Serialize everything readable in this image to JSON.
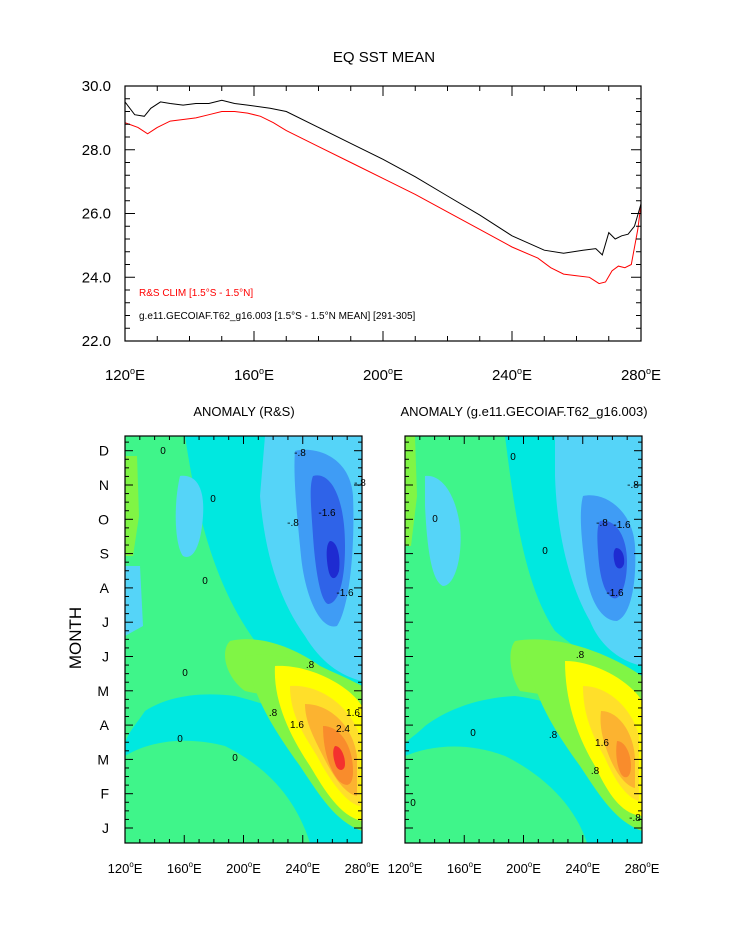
{
  "chart_data": [
    {
      "type": "line",
      "title": "EQ SST MEAN",
      "xlabel": "",
      "ylabel": "",
      "xlim": [
        120,
        280
      ],
      "ylim": [
        22,
        30
      ],
      "xticks": [
        120,
        160,
        200,
        240,
        280
      ],
      "xtick_labels": [
        "120°E",
        "160°E",
        "200°E",
        "240°E",
        "280°E"
      ],
      "yticks": [
        22,
        24,
        26,
        28,
        30
      ],
      "ytick_labels": [
        "22.0",
        "24.0",
        "26.0",
        "28.0",
        "30.0"
      ],
      "grid": false,
      "legend_placement": "bottom-left",
      "series": [
        {
          "name": "R&S CLIM [1.5°S - 1.5°N]",
          "color": "#ff0000",
          "x": [
            120,
            124,
            127,
            130,
            134,
            138,
            142,
            146,
            150,
            154,
            158,
            162,
            166,
            170,
            180,
            190,
            200,
            210,
            220,
            230,
            240,
            248,
            252,
            256,
            260,
            264,
            267,
            269,
            271,
            273,
            275,
            277,
            279,
            280
          ],
          "y": [
            28.85,
            28.7,
            28.5,
            28.7,
            28.9,
            28.95,
            29.0,
            29.1,
            29.2,
            29.2,
            29.15,
            29.05,
            28.85,
            28.6,
            28.1,
            27.6,
            27.1,
            26.6,
            26.05,
            25.5,
            24.95,
            24.6,
            24.3,
            24.1,
            24.05,
            24.0,
            23.8,
            23.85,
            24.2,
            24.35,
            24.3,
            24.4,
            25.5,
            26.3
          ]
        },
        {
          "name": "g.e11.GECOIAF.T62_g16.003 [1.5°S - 1.5°N MEAN] [291-305]",
          "color": "#000000",
          "x": [
            120,
            123,
            126,
            128,
            131,
            134,
            138,
            142,
            146,
            150,
            154,
            158,
            165,
            170,
            180,
            190,
            200,
            210,
            220,
            230,
            240,
            250,
            256,
            262,
            266,
            268,
            270,
            272,
            274,
            276,
            278,
            280
          ],
          "y": [
            29.5,
            29.1,
            29.05,
            29.3,
            29.5,
            29.45,
            29.4,
            29.45,
            29.45,
            29.55,
            29.45,
            29.4,
            29.3,
            29.2,
            28.7,
            28.2,
            27.7,
            27.15,
            26.55,
            25.95,
            25.3,
            24.85,
            24.75,
            24.85,
            24.9,
            24.7,
            25.4,
            25.2,
            25.3,
            25.35,
            25.6,
            26.3
          ]
        }
      ]
    },
    {
      "type": "heatmap",
      "title": "ANOMALY (R&S)",
      "xlabel": "",
      "ylabel": "MONTH",
      "xlim": [
        120,
        280
      ],
      "xticks": [
        120,
        160,
        200,
        240,
        280
      ],
      "xtick_labels": [
        "120°E",
        "160°E",
        "200°E",
        "240°E",
        "280°E"
      ],
      "ytick_labels": [
        "J",
        "F",
        "M",
        "A",
        "M",
        "J",
        "J",
        "A",
        "S",
        "O",
        "N",
        "D"
      ],
      "contour_labels": [
        "0",
        "0",
        "0",
        "0",
        "0",
        "0",
        "-.8",
        "-.8",
        "-1.6",
        "-1.6",
        ".8",
        ".8",
        "1.6",
        "2.4",
        "1.6",
        "-.8"
      ],
      "features": [
        {
          "kind": "warm",
          "center_lon": 263,
          "center_month": 4.2,
          "peak": 3.2
        },
        {
          "kind": "cool",
          "center_lon": 262,
          "center_month": 9.0,
          "peak": -2.8
        }
      ]
    },
    {
      "type": "heatmap",
      "title": "ANOMALY (g.e11.GECOIAF.T62_g16.003)",
      "xlabel": "",
      "ylabel": "",
      "xlim": [
        120,
        280
      ],
      "xticks": [
        120,
        160,
        200,
        240,
        280
      ],
      "xtick_labels": [
        "120°E",
        "160°E",
        "200°E",
        "240°E",
        "280°E"
      ],
      "contour_labels": [
        "0",
        "0",
        "0",
        "0",
        "0",
        "-.8",
        "-.8",
        "-1.6",
        "-1.6",
        ".8",
        ".8",
        ".8",
        "1.6",
        "-.8"
      ],
      "features": [
        {
          "kind": "warm",
          "center_lon": 265,
          "center_month": 4.3,
          "peak": 2.4
        },
        {
          "kind": "cool",
          "center_lon": 262,
          "center_month": 9.0,
          "peak": -2.6
        }
      ]
    }
  ],
  "colors": {
    "red_series": "#ff0000",
    "black_series": "#000000",
    "palette": [
      "#1e2bd1",
      "#2f63e8",
      "#3f9cf5",
      "#55d4f8",
      "#00e8e0",
      "#1ef0b0",
      "#3ff58a",
      "#80f545",
      "#ffff00",
      "#ffdf2a",
      "#fcb330",
      "#f98c2c",
      "#f4312e"
    ]
  }
}
